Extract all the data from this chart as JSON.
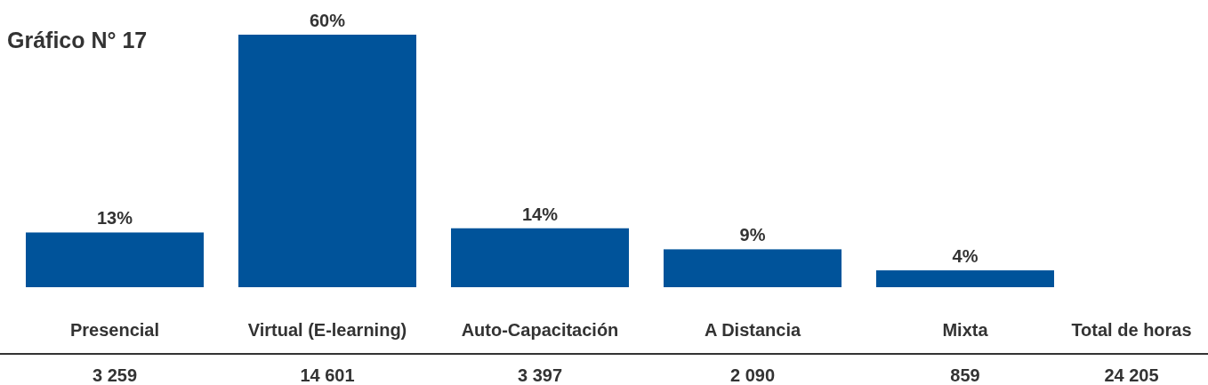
{
  "chart_data": {
    "type": "bar",
    "title": "Gráfico N° 17",
    "categories": [
      "Presencial",
      "Virtual (E-learning)",
      "Auto-Capacitación",
      "A Distancia",
      "Mixta",
      "Total de horas"
    ],
    "values": [
      13,
      60,
      14,
      9,
      4,
      null
    ],
    "color": "#00539a",
    "value_labels": [
      "13%",
      "60%",
      "14%",
      "9%",
      "4%",
      null
    ],
    "annotations": [
      "3 259",
      "14 601",
      "3 397",
      "2 090",
      "859",
      "24 205"
    ]
  }
}
